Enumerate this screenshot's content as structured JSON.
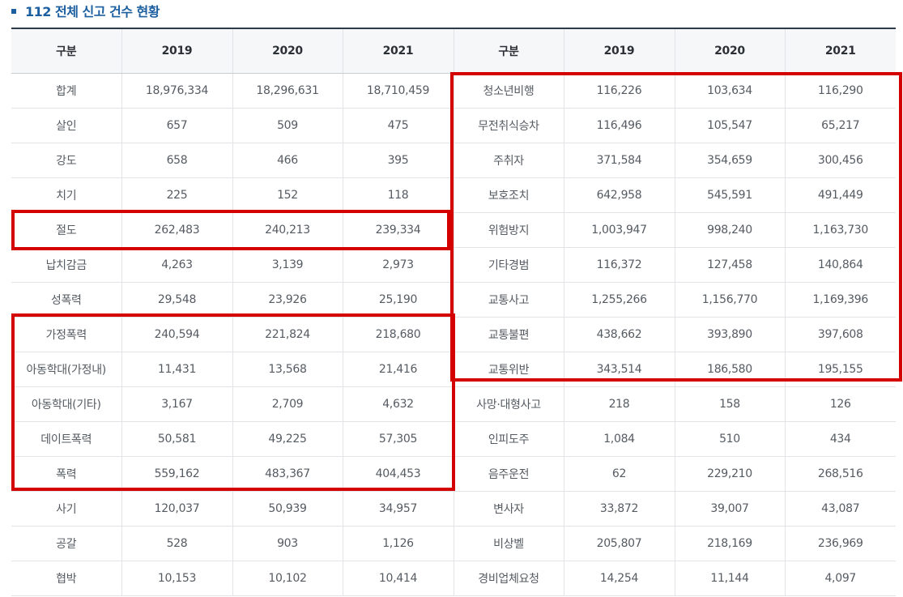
{
  "heading": {
    "title": "112 전체 신고 건수 현황"
  },
  "table": {
    "left_headers": [
      "구분",
      "2019",
      "2020",
      "2021"
    ],
    "right_headers": [
      "구분",
      "2019",
      "2020",
      "2021"
    ],
    "left_rows": [
      [
        "합계",
        "18,976,334",
        "18,296,631",
        "18,710,459"
      ],
      [
        "살인",
        "657",
        "509",
        "475"
      ],
      [
        "강도",
        "658",
        "466",
        "395"
      ],
      [
        "치기",
        "225",
        "152",
        "118"
      ],
      [
        "절도",
        "262,483",
        "240,213",
        "239,334"
      ],
      [
        "납치감금",
        "4,263",
        "3,139",
        "2,973"
      ],
      [
        "성폭력",
        "29,548",
        "23,926",
        "25,190"
      ],
      [
        "가정폭력",
        "240,594",
        "221,824",
        "218,680"
      ],
      [
        "아동학대(가정내)",
        "11,431",
        "13,568",
        "21,416"
      ],
      [
        "아동학대(기타)",
        "3,167",
        "2,709",
        "4,632"
      ],
      [
        "데이트폭력",
        "50,581",
        "49,225",
        "57,305"
      ],
      [
        "폭력",
        "559,162",
        "483,367",
        "404,453"
      ],
      [
        "사기",
        "120,037",
        "50,939",
        "34,957"
      ],
      [
        "공갈",
        "528",
        "903",
        "1,126"
      ],
      [
        "협박",
        "10,153",
        "10,102",
        "10,414"
      ]
    ],
    "right_rows": [
      [
        "청소년비행",
        "116,226",
        "103,634",
        "116,290"
      ],
      [
        "무전취식승차",
        "116,496",
        "105,547",
        "65,217"
      ],
      [
        "주취자",
        "371,584",
        "354,659",
        "300,456"
      ],
      [
        "보호조치",
        "642,958",
        "545,591",
        "491,449"
      ],
      [
        "위험방지",
        "1,003,947",
        "998,240",
        "1,163,730"
      ],
      [
        "기타경범",
        "116,372",
        "127,458",
        "140,864"
      ],
      [
        "교통사고",
        "1,255,266",
        "1,156,770",
        "1,169,396"
      ],
      [
        "교통불편",
        "438,662",
        "393,890",
        "397,608"
      ],
      [
        "교통위반",
        "343,514",
        "186,580",
        "195,155"
      ],
      [
        "사망·대형사고",
        "218",
        "158",
        "126"
      ],
      [
        "인피도주",
        "1,084",
        "510",
        "434"
      ],
      [
        "음주운전",
        "62",
        "229,210",
        "268,516"
      ],
      [
        "변사자",
        "33,872",
        "39,007",
        "43,087"
      ],
      [
        "비상벨",
        "205,807",
        "218,169",
        "236,969"
      ],
      [
        "경비업체요청",
        "14,254",
        "11,144",
        "4,097"
      ]
    ]
  },
  "colors": {
    "heading": "#1c5fa0",
    "highlight": "#d40000",
    "header_bg": "#f6f7f9",
    "top_rule": "#2d3a48"
  }
}
